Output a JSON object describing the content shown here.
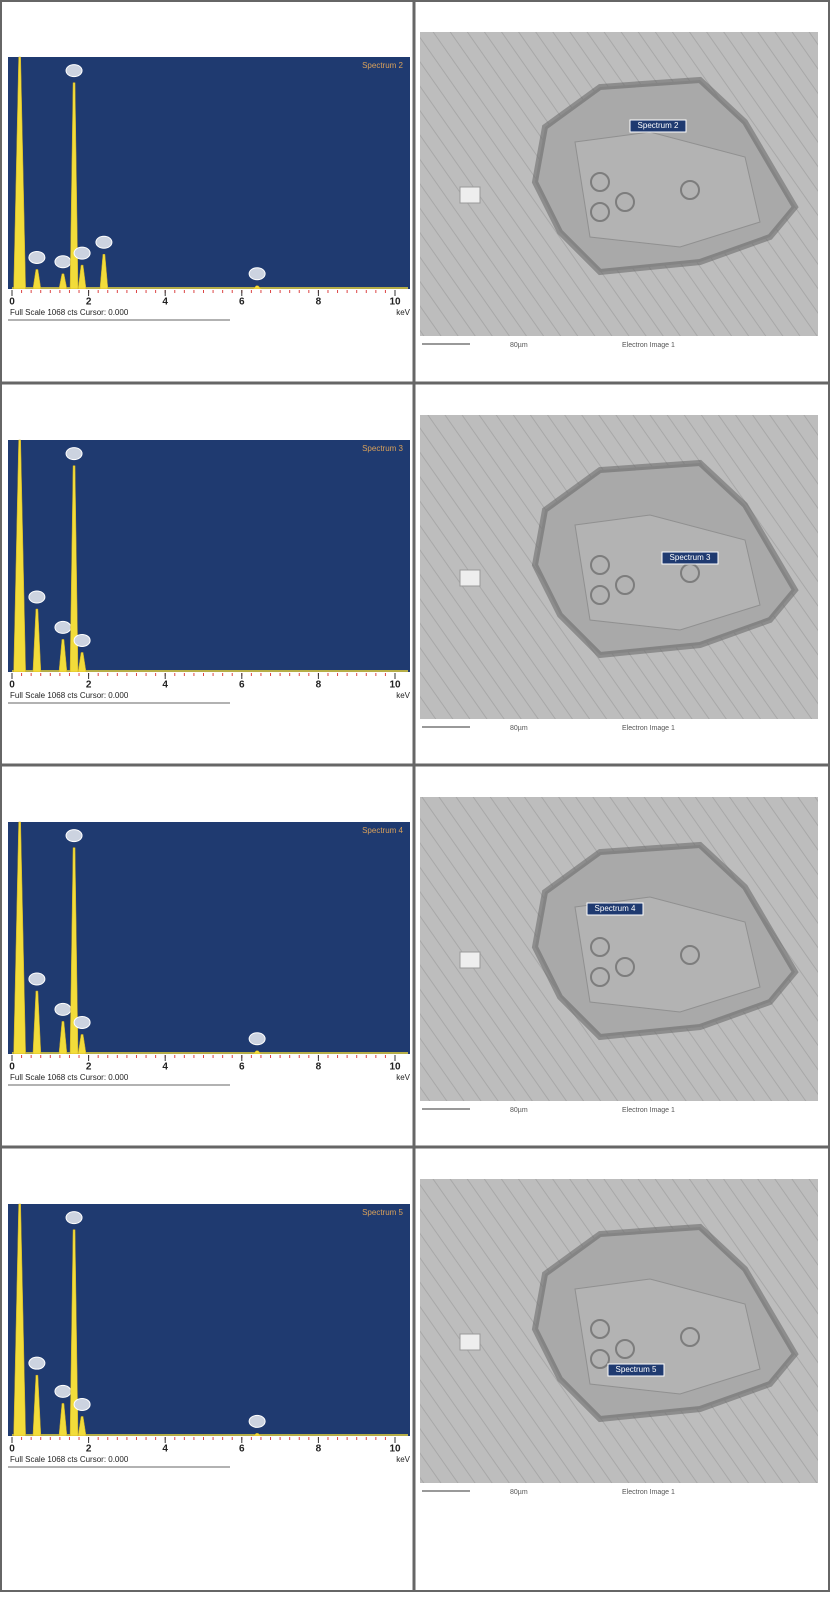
{
  "rows": [
    {
      "spectrum": {
        "title": "Spectrum 2",
        "xlim": [
          0,
          10
        ],
        "ylim": [
          0,
          1068
        ],
        "xticks": [
          0,
          2,
          4,
          6,
          8,
          10
        ],
        "unit": "keV",
        "footer": "Full Scale 1068 cts Cursor: 0.000",
        "peaks": {
          "x": [
            0.2,
            0.65,
            1.33,
            1.62,
            1.83,
            2.4,
            6.4
          ],
          "counts": [
            1068,
            90,
            70,
            950,
            110,
            160,
            15
          ]
        }
      },
      "image": {
        "label": "Spectrum 2",
        "scale_bar": "80µm",
        "caption": "Electron Image 1"
      }
    },
    {
      "spectrum": {
        "title": "Spectrum 3",
        "xlim": [
          0,
          10
        ],
        "ylim": [
          0,
          1068
        ],
        "xticks": [
          0,
          2,
          4,
          6,
          8,
          10
        ],
        "unit": "keV",
        "footer": "Full Scale 1068 cts Cursor: 0.000",
        "peaks": {
          "x": [
            0.2,
            0.65,
            1.33,
            1.62,
            1.83
          ],
          "counts": [
            1068,
            290,
            150,
            950,
            90
          ]
        }
      },
      "image": {
        "label": "Spectrum 3",
        "scale_bar": "80µm",
        "caption": "Electron Image 1"
      }
    },
    {
      "spectrum": {
        "title": "Spectrum 4",
        "xlim": [
          0,
          10
        ],
        "ylim": [
          0,
          1068
        ],
        "xticks": [
          0,
          2,
          4,
          6,
          8,
          10
        ],
        "unit": "keV",
        "footer": "Full Scale 1068 cts Cursor: 0.000",
        "peaks": {
          "x": [
            0.2,
            0.65,
            1.33,
            1.62,
            1.83,
            6.4
          ],
          "counts": [
            1068,
            290,
            150,
            950,
            90,
            15
          ]
        }
      },
      "image": {
        "label": "Spectrum 4",
        "scale_bar": "80µm",
        "caption": "Electron Image 1"
      }
    },
    {
      "spectrum": {
        "title": "Spectrum 5",
        "xlim": [
          0,
          10
        ],
        "ylim": [
          0,
          1068
        ],
        "xticks": [
          0,
          2,
          4,
          6,
          8,
          10
        ],
        "unit": "keV",
        "footer": "Full Scale 1068 cts Cursor: 0.000",
        "peaks": {
          "x": [
            0.2,
            0.65,
            1.33,
            1.62,
            1.83,
            6.4
          ],
          "counts": [
            1068,
            280,
            150,
            950,
            90,
            12
          ]
        }
      },
      "image": {
        "label": "Spectrum 5",
        "scale_bar": "80µm",
        "caption": "Electron Image 1"
      }
    }
  ]
}
